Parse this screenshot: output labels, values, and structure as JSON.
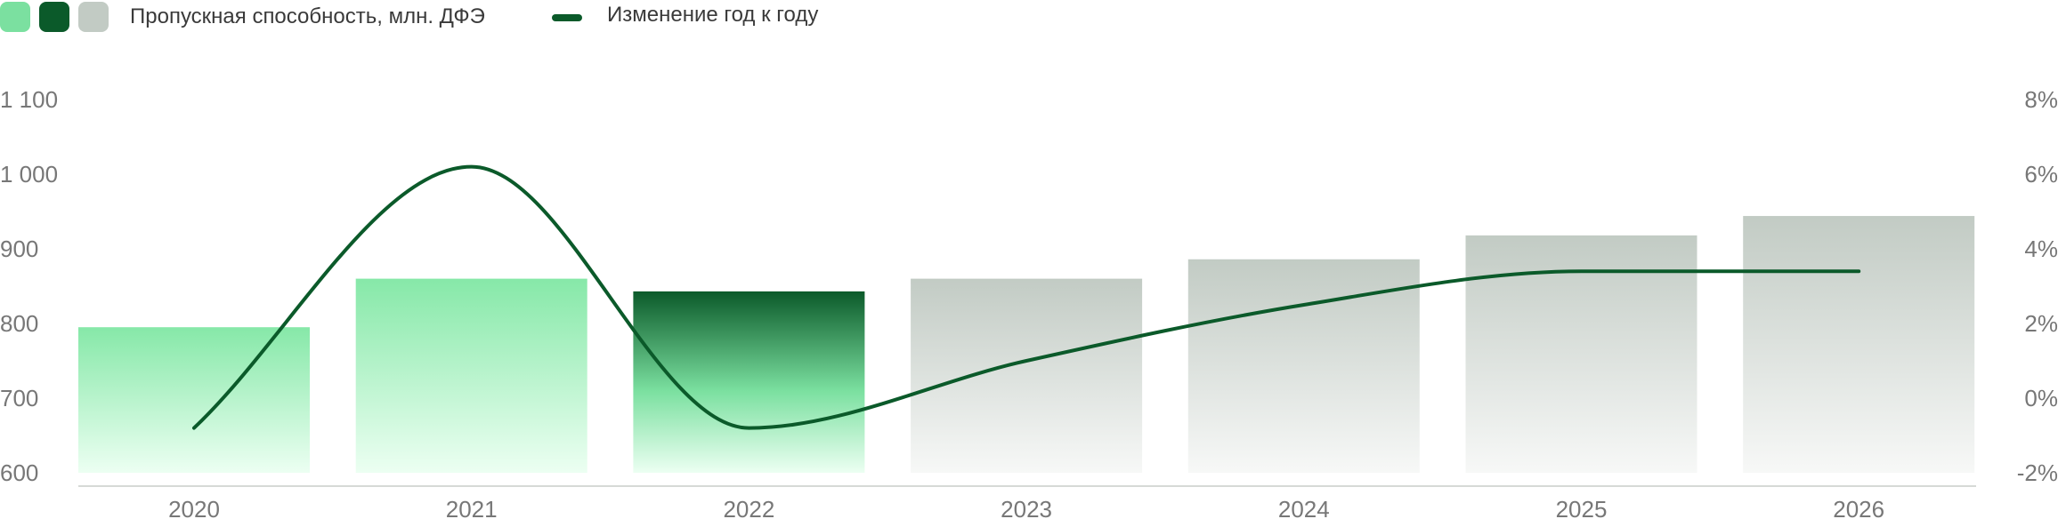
{
  "legend": {
    "bars_label": "Пропускная способность, млн. ДФЭ",
    "line_label": "Изменение год к году",
    "swatches": [
      {
        "name": "actual",
        "color": "#7be0a0"
      },
      {
        "name": "current",
        "color": "#0b5a2a"
      },
      {
        "name": "forecast",
        "color": "#c2cbc4"
      }
    ],
    "line_color": "#0b5a2a"
  },
  "chart_data": {
    "type": "bar",
    "categories": [
      "2020",
      "2021",
      "2022",
      "2023",
      "2024",
      "2025",
      "2026"
    ],
    "series": [
      {
        "name": "Пропускная способность, млн. ДФЭ",
        "type": "bar",
        "axis": "left",
        "values": [
          795,
          860,
          843,
          860,
          886,
          918,
          944
        ],
        "styles": [
          "actual",
          "actual",
          "current",
          "forecast",
          "forecast",
          "forecast",
          "forecast"
        ]
      },
      {
        "name": "Изменение год к году",
        "type": "line",
        "axis": "right",
        "values": [
          -0.8,
          6.2,
          -0.8,
          1.0,
          2.5,
          3.4,
          3.4
        ]
      }
    ],
    "y_left": {
      "min": 600,
      "max": 1100,
      "ticks": [
        "1 100",
        "1 000",
        "900",
        "800",
        "700",
        "600"
      ],
      "tick_values": [
        1100,
        1000,
        900,
        800,
        700,
        600
      ]
    },
    "y_right": {
      "min": -2,
      "max": 8,
      "ticks": [
        "8%",
        "6%",
        "4%",
        "2%",
        "0%",
        "-2%"
      ],
      "tick_values": [
        8,
        6,
        4,
        2,
        0,
        -2
      ]
    },
    "colors": {
      "actual_top": "#86e8a8",
      "actual_bottom": "#ecfff2",
      "current_top": "#0b5a2a",
      "current_mid": "#7be0a0",
      "current_bottom": "#ecfff2",
      "forecast_top": "#c2cbc4",
      "forecast_bottom": "#f7f8f7",
      "line": "#0b5a2a",
      "axis": "#d6d9d6",
      "tick_text": "#777777"
    },
    "grid": false
  }
}
